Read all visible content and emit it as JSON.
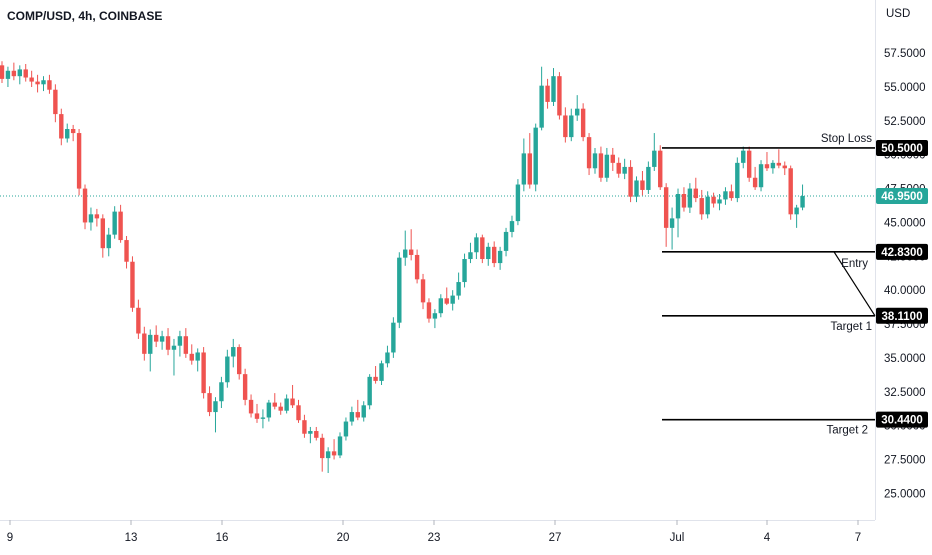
{
  "header": {
    "title": "COMP/USD, 4h, COINBASE"
  },
  "colors": {
    "up": "#26a69a",
    "down": "#ef5350",
    "last_line": "#26a69a",
    "level": "#000000"
  },
  "chart_data": {
    "type": "candlestick",
    "title": "COMP/USD, 4h, COINBASE",
    "currency": "USD",
    "ylim": [
      23.4,
      59.8
    ],
    "y_ticks": [
      "57.5000",
      "55.0000",
      "52.5000",
      "50.0000",
      "47.5000",
      "45.0000",
      "42.5000",
      "40.0000",
      "37.5000",
      "35.0000",
      "32.5000",
      "30.0000",
      "27.5000",
      "25.0000"
    ],
    "x_ticks": [
      "9",
      "13",
      "16",
      "20",
      "23",
      "27",
      "Jul",
      "4",
      "7"
    ],
    "last_price": "46.9500",
    "levels": [
      {
        "name": "Stop Loss",
        "value": "50.5000"
      },
      {
        "name": "Entry",
        "value": "42.8300"
      },
      {
        "name": "Target 1",
        "value": "38.1100"
      },
      {
        "name": "Target 2",
        "value": "30.4400"
      }
    ],
    "candles": [
      [
        56.6,
        56.9,
        55.3,
        55.6
      ],
      [
        55.6,
        56.5,
        55.0,
        56.2
      ],
      [
        56.2,
        56.8,
        55.5,
        55.8
      ],
      [
        55.8,
        56.6,
        55.2,
        56.3
      ],
      [
        56.3,
        56.7,
        55.4,
        55.7
      ],
      [
        55.7,
        56.2,
        55.0,
        55.4
      ],
      [
        55.4,
        55.9,
        54.6,
        55.2
      ],
      [
        55.2,
        55.8,
        54.7,
        55.5
      ],
      [
        55.5,
        55.9,
        54.5,
        54.8
      ],
      [
        54.8,
        55.2,
        52.4,
        53.0
      ],
      [
        53.0,
        53.4,
        50.7,
        51.2
      ],
      [
        51.2,
        52.3,
        50.9,
        51.9
      ],
      [
        51.9,
        52.2,
        51.0,
        51.6
      ],
      [
        51.6,
        51.9,
        47.0,
        47.5
      ],
      [
        47.5,
        47.8,
        44.5,
        45.0
      ],
      [
        45.0,
        46.1,
        44.4,
        45.6
      ],
      [
        45.6,
        46.0,
        44.7,
        45.3
      ],
      [
        45.3,
        45.6,
        42.4,
        43.1
      ],
      [
        43.1,
        44.6,
        42.5,
        44.1
      ],
      [
        44.1,
        46.2,
        43.8,
        45.8
      ],
      [
        45.8,
        46.3,
        43.5,
        43.7
      ],
      [
        43.7,
        44.0,
        41.6,
        42.1
      ],
      [
        42.1,
        42.5,
        38.4,
        38.7
      ],
      [
        38.7,
        39.3,
        36.4,
        36.8
      ],
      [
        36.8,
        37.3,
        34.8,
        35.3
      ],
      [
        35.3,
        37.1,
        34.0,
        36.7
      ],
      [
        36.7,
        37.4,
        35.8,
        36.2
      ],
      [
        36.2,
        37.0,
        35.6,
        36.6
      ],
      [
        36.6,
        37.2,
        35.2,
        35.6
      ],
      [
        35.6,
        36.4,
        33.7,
        35.9
      ],
      [
        35.9,
        37.0,
        35.1,
        36.6
      ],
      [
        36.6,
        37.2,
        35.0,
        35.3
      ],
      [
        35.3,
        36.0,
        34.5,
        34.8
      ],
      [
        34.8,
        35.7,
        34.0,
        35.4
      ],
      [
        35.4,
        35.8,
        32.0,
        32.4
      ],
      [
        32.4,
        32.9,
        30.7,
        31.0
      ],
      [
        31.0,
        32.1,
        29.5,
        31.8
      ],
      [
        31.8,
        33.6,
        31.3,
        33.2
      ],
      [
        33.2,
        35.6,
        32.8,
        35.1
      ],
      [
        35.1,
        36.4,
        34.3,
        35.8
      ],
      [
        35.8,
        36.0,
        33.4,
        33.8
      ],
      [
        33.8,
        34.2,
        31.5,
        31.9
      ],
      [
        31.9,
        32.3,
        30.6,
        30.9
      ],
      [
        30.9,
        31.6,
        30.2,
        30.5
      ],
      [
        30.5,
        31.2,
        29.8,
        30.6
      ],
      [
        30.6,
        31.9,
        30.3,
        31.7
      ],
      [
        31.7,
        32.4,
        31.2,
        31.4
      ],
      [
        31.4,
        31.7,
        30.8,
        31.1
      ],
      [
        31.1,
        32.3,
        30.9,
        32.0
      ],
      [
        32.0,
        33.0,
        31.3,
        31.5
      ],
      [
        31.5,
        31.9,
        30.2,
        30.4
      ],
      [
        30.4,
        30.8,
        29.1,
        29.4
      ],
      [
        29.4,
        29.9,
        28.7,
        29.6
      ],
      [
        29.6,
        29.9,
        28.9,
        29.1
      ],
      [
        29.1,
        29.4,
        26.6,
        27.6
      ],
      [
        27.6,
        28.4,
        26.5,
        28.1
      ],
      [
        28.1,
        29.0,
        27.5,
        27.8
      ],
      [
        27.8,
        29.5,
        27.6,
        29.2
      ],
      [
        29.2,
        30.6,
        28.9,
        30.3
      ],
      [
        30.3,
        31.4,
        30.0,
        31.0
      ],
      [
        31.0,
        31.9,
        30.4,
        30.6
      ],
      [
        30.6,
        31.8,
        30.3,
        31.5
      ],
      [
        31.5,
        33.8,
        31.2,
        33.6
      ],
      [
        33.6,
        34.4,
        33.1,
        33.3
      ],
      [
        33.3,
        34.8,
        33.0,
        34.6
      ],
      [
        34.6,
        35.9,
        34.3,
        35.4
      ],
      [
        35.4,
        38.0,
        35.0,
        37.6
      ],
      [
        37.6,
        42.8,
        37.2,
        42.4
      ],
      [
        42.4,
        44.4,
        41.8,
        43.0
      ],
      [
        43.0,
        44.5,
        42.2,
        42.6
      ],
      [
        42.6,
        43.0,
        40.5,
        40.8
      ],
      [
        40.8,
        41.2,
        38.6,
        39.1
      ],
      [
        39.1,
        39.4,
        37.6,
        37.9
      ],
      [
        37.9,
        38.6,
        37.2,
        38.3
      ],
      [
        38.3,
        39.7,
        38.0,
        39.4
      ],
      [
        39.4,
        40.2,
        38.9,
        39.0
      ],
      [
        39.0,
        40.0,
        38.5,
        39.6
      ],
      [
        39.6,
        41.3,
        39.3,
        40.6
      ],
      [
        40.6,
        42.7,
        40.2,
        42.3
      ],
      [
        42.3,
        43.5,
        42.0,
        42.8
      ],
      [
        42.8,
        44.2,
        42.3,
        43.9
      ],
      [
        43.9,
        44.1,
        42.0,
        42.3
      ],
      [
        42.3,
        43.5,
        41.8,
        43.2
      ],
      [
        43.2,
        43.6,
        41.7,
        42.0
      ],
      [
        42.0,
        43.2,
        41.5,
        42.9
      ],
      [
        42.9,
        44.6,
        42.5,
        44.3
      ],
      [
        44.3,
        45.5,
        43.9,
        45.1
      ],
      [
        45.1,
        48.2,
        44.8,
        47.8
      ],
      [
        47.8,
        51.2,
        47.3,
        50.1
      ],
      [
        50.1,
        51.6,
        47.5,
        47.8
      ],
      [
        47.8,
        52.3,
        47.3,
        52.0
      ],
      [
        52.0,
        56.5,
        51.8,
        55.1
      ],
      [
        55.1,
        55.6,
        53.4,
        53.9
      ],
      [
        53.9,
        56.4,
        53.6,
        55.8
      ],
      [
        55.8,
        56.1,
        52.6,
        52.9
      ],
      [
        52.9,
        53.5,
        50.9,
        51.3
      ],
      [
        51.3,
        53.4,
        51.0,
        52.9
      ],
      [
        52.9,
        54.4,
        52.5,
        53.4
      ],
      [
        53.4,
        53.8,
        51.0,
        51.3
      ],
      [
        51.3,
        51.6,
        48.5,
        49.0
      ],
      [
        49.0,
        50.5,
        48.6,
        50.1
      ],
      [
        50.1,
        50.6,
        48.0,
        48.3
      ],
      [
        48.3,
        50.5,
        48.0,
        50.0
      ],
      [
        50.0,
        50.5,
        48.8,
        49.4
      ],
      [
        49.4,
        49.8,
        48.3,
        48.6
      ],
      [
        48.6,
        49.7,
        48.2,
        49.1
      ],
      [
        49.1,
        49.6,
        46.5,
        46.9
      ],
      [
        46.9,
        48.4,
        46.5,
        48.1
      ],
      [
        48.1,
        48.8,
        47.0,
        47.4
      ],
      [
        47.4,
        49.5,
        47.1,
        49.1
      ],
      [
        49.1,
        51.6,
        48.8,
        50.3
      ],
      [
        50.3,
        50.7,
        47.4,
        47.6
      ],
      [
        47.6,
        47.9,
        43.2,
        44.6
      ],
      [
        44.6,
        46.1,
        43.0,
        45.3
      ],
      [
        45.3,
        47.5,
        43.9,
        47.1
      ],
      [
        47.1,
        47.6,
        45.8,
        46.1
      ],
      [
        46.1,
        47.9,
        45.7,
        47.5
      ],
      [
        47.5,
        48.3,
        46.5,
        46.8
      ],
      [
        46.8,
        47.4,
        45.2,
        45.6
      ],
      [
        45.6,
        47.3,
        45.3,
        46.9
      ],
      [
        46.9,
        47.2,
        46.1,
        46.4
      ],
      [
        46.4,
        47.1,
        45.9,
        46.7
      ],
      [
        46.7,
        47.6,
        46.3,
        47.3
      ],
      [
        47.3,
        47.8,
        46.6,
        46.8
      ],
      [
        46.8,
        49.8,
        46.5,
        49.4
      ],
      [
        49.4,
        50.6,
        49.0,
        50.3
      ],
      [
        50.3,
        50.6,
        48.0,
        48.3
      ],
      [
        48.3,
        49.1,
        47.4,
        47.6
      ],
      [
        47.6,
        49.6,
        47.3,
        49.3
      ],
      [
        49.3,
        50.2,
        48.8,
        49.0
      ],
      [
        49.0,
        49.6,
        48.6,
        49.4
      ],
      [
        49.4,
        50.4,
        49.0,
        49.2
      ],
      [
        49.2,
        49.5,
        48.5,
        49.0
      ],
      [
        49.0,
        49.2,
        45.2,
        45.6
      ],
      [
        45.6,
        46.3,
        44.6,
        46.1
      ],
      [
        46.1,
        47.8,
        45.9,
        46.95
      ]
    ]
  }
}
